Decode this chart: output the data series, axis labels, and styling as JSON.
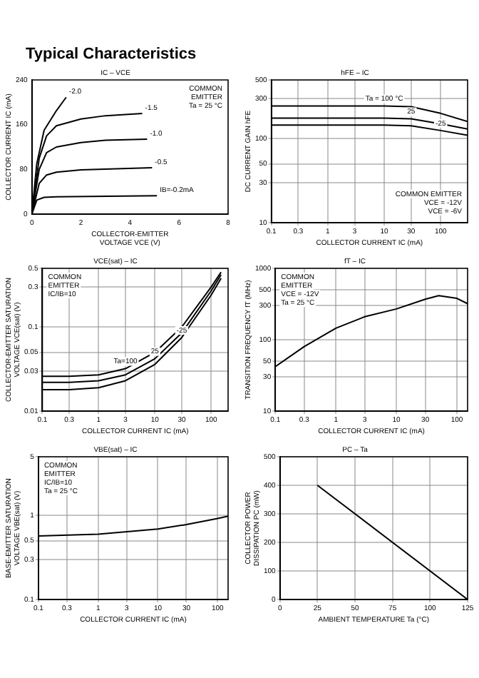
{
  "chart_data": [
    {
      "type": "line",
      "title": "Typical Characteristics",
      "subtitle": "IC – VCE",
      "xlabel": "COLLECTOR-EMITTER VOLTAGE VCE (V)",
      "ylabel": "COLLECTOR CURRENT IC (mA)",
      "xlim": [
        0,
        8
      ],
      "ylim": [
        0,
        240
      ],
      "xticks": [
        0,
        2,
        4,
        6,
        8
      ],
      "yticks": [
        0,
        80,
        160,
        240
      ],
      "grid": false,
      "series": [
        {
          "name": "-2.0",
          "color": "#000000",
          "x": [
            0,
            0.2,
            0.5,
            1,
            1.4
          ],
          "values": [
            0,
            90,
            150,
            185,
            209
          ]
        },
        {
          "name": "-1.5",
          "color": "#000000",
          "x": [
            0,
            0.3,
            0.6,
            1,
            2,
            3,
            4.5
          ],
          "values": [
            0,
            100,
            140,
            158,
            170,
            176,
            180
          ]
        },
        {
          "name": "-1.0",
          "color": "#000000",
          "x": [
            0,
            0.3,
            0.6,
            1,
            2,
            3,
            4.7
          ],
          "values": [
            0,
            80,
            110,
            120,
            128,
            132,
            134
          ]
        },
        {
          "name": "-0.5",
          "color": "#000000",
          "x": [
            0,
            0.3,
            0.6,
            1,
            2,
            4.9
          ],
          "values": [
            0,
            55,
            70,
            75,
            79,
            83
          ]
        },
        {
          "name": "IB=-0.2mA",
          "color": "#000000",
          "x": [
            0,
            0.2,
            0.5,
            1,
            5.1
          ],
          "values": [
            0,
            25,
            30,
            31,
            33
          ]
        }
      ],
      "annotations": [
        "COMMON",
        "EMITTER",
        "Ta = 25 °C"
      ]
    },
    {
      "type": "line",
      "title": "hFE – IC",
      "xlabel": "COLLECTOR CURRENT IC (mA)",
      "ylabel": "DC CURRENT GAIN hFE",
      "log": "xy",
      "xlim": [
        0.1,
        300
      ],
      "ylim": [
        10,
        500
      ],
      "xticks": [
        0.1,
        0.3,
        1,
        3,
        10,
        30,
        100
      ],
      "yticks": [
        10,
        30,
        50,
        100,
        300,
        500
      ],
      "grid": true,
      "x": [
        0.1,
        1,
        10,
        30,
        100,
        300
      ],
      "series": [
        {
          "name": "Ta = 100 °C",
          "color": "#000000",
          "values": [
            245,
            245,
            245,
            240,
            200,
            160
          ]
        },
        {
          "name": "25",
          "color": "#000000",
          "values": [
            176,
            176,
            176,
            172,
            150,
            130
          ]
        },
        {
          "name": "-25",
          "color": "#000000",
          "values": [
            145,
            145,
            145,
            142,
            125,
            110
          ]
        }
      ],
      "annotations": [
        "COMMON EMITTER",
        "VCE = -12V",
        "VCE = -6V"
      ]
    },
    {
      "type": "line",
      "title": "VCE(sat) – IC",
      "xlabel": "COLLECTOR CURRENT IC (mA)",
      "ylabel": "COLLECTOR-EMITTER SATURATION VOLTAGE VCE(sat) (V)",
      "log": "xy",
      "xlim": [
        0.1,
        200
      ],
      "ylim": [
        0.01,
        0.5
      ],
      "xticks": [
        0.1,
        0.3,
        1,
        3,
        10,
        30,
        100
      ],
      "yticks": [
        0.01,
        0.03,
        0.05,
        0.1,
        0.3,
        0.5
      ],
      "grid": true,
      "x": [
        0.1,
        0.3,
        1,
        3,
        10,
        30,
        100,
        150
      ],
      "series": [
        {
          "name": "Ta=100",
          "color": "#000000",
          "values": [
            0.026,
            0.026,
            0.027,
            0.032,
            0.05,
            0.1,
            0.3,
            0.45
          ]
        },
        {
          "name": "25",
          "color": "#000000",
          "values": [
            0.022,
            0.022,
            0.023,
            0.027,
            0.042,
            0.085,
            0.27,
            0.42
          ]
        },
        {
          "name": "-25",
          "color": "#000000",
          "values": [
            0.018,
            0.018,
            0.019,
            0.023,
            0.036,
            0.075,
            0.24,
            0.38
          ]
        }
      ],
      "annotations": [
        "COMMON",
        "EMITTER",
        "IC/IB=10"
      ]
    },
    {
      "type": "line",
      "title": "fT – IC",
      "xlabel": "COLLECTOR CURRENT IC (mA)",
      "ylabel": "TRANSITION FREQUENCY fT (MHz)",
      "log": "xy",
      "xlim": [
        0.1,
        150
      ],
      "ylim": [
        10,
        1000
      ],
      "xticks": [
        0.1,
        0.3,
        1,
        3,
        10,
        30,
        100
      ],
      "yticks": [
        10,
        30,
        50,
        100,
        300,
        500,
        1000
      ],
      "grid": true,
      "x": [
        0.1,
        0.3,
        1,
        3,
        10,
        30,
        50,
        100,
        150
      ],
      "series": [
        {
          "color": "#000000",
          "values": [
            42,
            80,
            145,
            210,
            270,
            370,
            415,
            380,
            320
          ]
        }
      ],
      "annotations": [
        "COMMON",
        "EMITTER",
        "VCE = -12V",
        "Ta = 25 °C"
      ]
    },
    {
      "type": "line",
      "title": "VBE(sat) – IC",
      "xlabel": "COLLECTOR CURRENT IC (mA)",
      "ylabel": "BASE-EMITTER SATURATION VOLTAGE VBE(sat) (V)",
      "log": "xy",
      "xlim": [
        0.1,
        150
      ],
      "ylim": [
        0.1,
        5
      ],
      "xticks": [
        0.1,
        0.3,
        1,
        3,
        10,
        30,
        100
      ],
      "yticks": [
        0.1,
        0.3,
        0.5,
        1,
        5
      ],
      "grid": true,
      "x": [
        0.1,
        1,
        10,
        30,
        100,
        150
      ],
      "series": [
        {
          "color": "#000000",
          "values": [
            0.57,
            0.6,
            0.69,
            0.78,
            0.92,
            0.98
          ]
        }
      ],
      "annotations": [
        "COMMON",
        "EMITTER",
        "IC/IB=10",
        "Ta = 25 °C"
      ]
    },
    {
      "type": "line",
      "title": "PC – Ta",
      "xlabel": "AMBIENT TEMPERATURE Ta (°C)",
      "ylabel": "COLLECTOR POWER DISSIPATION PC (mW)",
      "xlim": [
        0,
        125
      ],
      "ylim": [
        0,
        500
      ],
      "xticks": [
        0,
        25,
        50,
        75,
        100,
        125
      ],
      "yticks": [
        0,
        100,
        200,
        300,
        400,
        500
      ],
      "grid": true,
      "x": [
        25,
        125
      ],
      "series": [
        {
          "color": "#000000",
          "values": [
            400,
            0
          ]
        }
      ]
    }
  ]
}
